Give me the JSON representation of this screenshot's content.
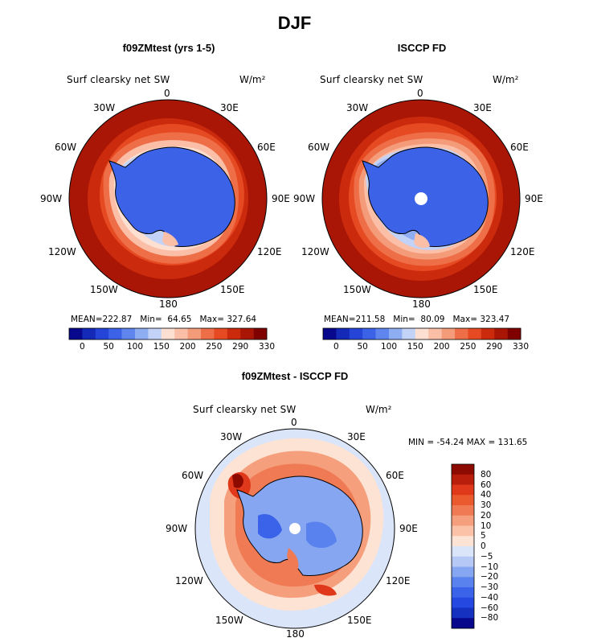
{
  "title": "DJF",
  "colors": {
    "abs_levels": [
      "#08088c",
      "#1529b8",
      "#2445d8",
      "#3c62e8",
      "#5f86ee",
      "#8fadf3",
      "#c3d3f7",
      "#fde0d2",
      "#fbbfa8",
      "#f49b7a",
      "#ee6e48",
      "#e64a22",
      "#cc2a0d",
      "#a91606",
      "#800000"
    ],
    "diff_levels": [
      "#08088c",
      "#1531c0",
      "#2448e0",
      "#3a63ea",
      "#5a82ee",
      "#86a6f2",
      "#b6c9f6",
      "#dae5fa",
      "#fde3d4",
      "#fbc2a8",
      "#f59f7c",
      "#ef7a53",
      "#ea5a2e",
      "#e0381a",
      "#b91d0b",
      "#8c0a00"
    ]
  },
  "panels": [
    {
      "id": "model",
      "title": "f09ZMtest (yrs 1-5)",
      "variable": "Surf clearsky net SW",
      "units": "W/m²",
      "stats": {
        "mean_label": "MEAN=",
        "mean": "222.87",
        "min_label": "Min=",
        "min": "64.65",
        "max_label": "Max=",
        "max": "327.64"
      },
      "colorbar_ticks": [
        "0",
        "50",
        "100",
        "150",
        "200",
        "250",
        "290",
        "330"
      ]
    },
    {
      "id": "obs",
      "title": "ISCCP FD",
      "variable": "Surf clearsky net SW",
      "units": "W/m²",
      "stats": {
        "mean_label": "MEAN=",
        "mean": "211.58",
        "min_label": "Min=",
        "min": "80.09",
        "max_label": "Max=",
        "max": "323.47"
      },
      "colorbar_ticks": [
        "0",
        "50",
        "100",
        "150",
        "200",
        "250",
        "290",
        "330"
      ]
    }
  ],
  "difference": {
    "title": "f09ZMtest - ISCCP FD",
    "variable": "Surf clearsky net SW",
    "units": "W/m²",
    "minmax": "MIN = -54.24  MAX = 131.65",
    "colorbar_labels": [
      "80",
      "60",
      "40",
      "30",
      "20",
      "10",
      "5",
      "0",
      "−5",
      "−10",
      "−20",
      "−30",
      "−40",
      "−60",
      "−80"
    ]
  },
  "longitudes": {
    "n": "0",
    "ne": "30E",
    "ene": "60E",
    "e": "90E",
    "ese": "120E",
    "se": "150E",
    "s": "180",
    "sw": "150W",
    "wsw": "120W",
    "w": "90W",
    "wnw": "60W",
    "nw": "30W"
  }
}
